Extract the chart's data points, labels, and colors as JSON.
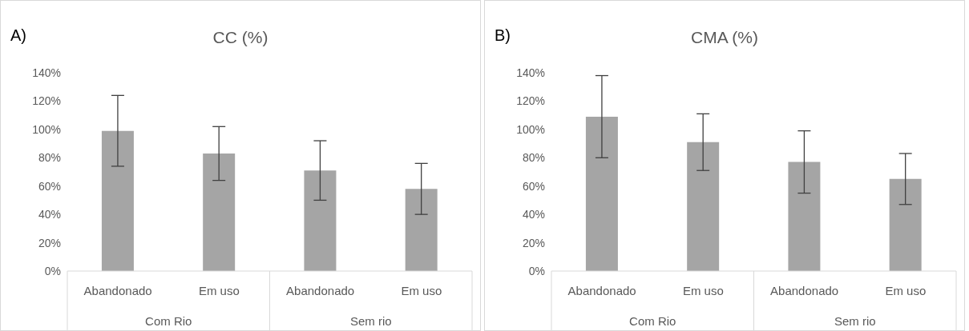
{
  "chart_data": [
    {
      "type": "bar",
      "title": "CC (%)",
      "annotations": [
        "A)",
        "Com Rio",
        "Sem rio"
      ],
      "categories": [
        "Abandonado",
        "Em uso",
        "Abandonado",
        "Em uso"
      ],
      "values": [
        99,
        83,
        71,
        58
      ],
      "errors": [
        25,
        19,
        21,
        18
      ],
      "color": "#a5a5a5",
      "ylim": [
        0,
        140
      ],
      "yticks": [
        {
          "value": 0,
          "label": "0%"
        },
        {
          "value": 20,
          "label": "20%"
        },
        {
          "value": 40,
          "label": "40%"
        },
        {
          "value": 60,
          "label": "60%"
        },
        {
          "value": 80,
          "label": "80%"
        },
        {
          "value": 100,
          "label": "100%"
        },
        {
          "value": 120,
          "label": "120%"
        },
        {
          "value": 140,
          "label": "140%"
        }
      ]
    },
    {
      "type": "bar",
      "title": "CMA (%)",
      "annotations": [
        "B)",
        "Com Rio",
        "Sem rio"
      ],
      "categories": [
        "Abandonado",
        "Em uso",
        "Abandonado",
        "Em uso"
      ],
      "values": [
        109,
        91,
        77,
        65
      ],
      "errors": [
        29,
        20,
        22,
        18
      ],
      "color": "#a5a5a5",
      "ylim": [
        0,
        140
      ],
      "yticks": [
        {
          "value": 0,
          "label": "0%"
        },
        {
          "value": 20,
          "label": "20%"
        },
        {
          "value": 40,
          "label": "40%"
        },
        {
          "value": 60,
          "label": "60%"
        },
        {
          "value": 80,
          "label": "80%"
        },
        {
          "value": 100,
          "label": "100%"
        },
        {
          "value": 120,
          "label": "120%"
        },
        {
          "value": 140,
          "label": "140%"
        }
      ]
    }
  ]
}
